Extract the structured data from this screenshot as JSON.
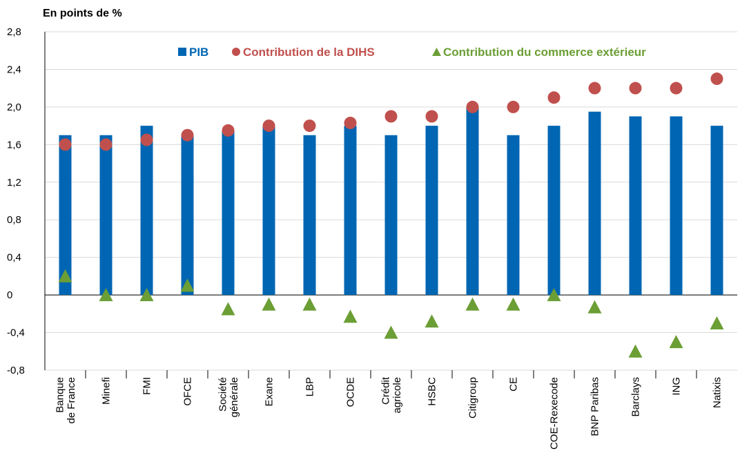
{
  "chart_data": {
    "type": "bar",
    "title": "En points de %",
    "categories": [
      "Banque\nde France",
      "Minefi",
      "FMI",
      "OFCE",
      "Société\ngénérale",
      "Exane",
      "LBP",
      "OCDE",
      "Crédit\nagricole",
      "HSBC",
      "Citigroup",
      "CE",
      "COE-Rexecode",
      "BNP Paribas",
      "Barclays",
      "ING",
      "Natixis"
    ],
    "series": [
      {
        "name": "PIB",
        "color": "#0066b3",
        "mark": "bar",
        "values": [
          1.7,
          1.7,
          1.8,
          1.7,
          1.75,
          1.8,
          1.7,
          1.8,
          1.7,
          1.8,
          2.0,
          1.7,
          1.8,
          1.95,
          1.9,
          1.9,
          1.8
        ]
      },
      {
        "name": "Contribution de la DIHS",
        "color": "#c0504d",
        "mark": "circle",
        "values": [
          1.6,
          1.6,
          1.65,
          1.7,
          1.75,
          1.8,
          1.8,
          1.83,
          1.9,
          1.9,
          2.0,
          2.0,
          2.1,
          2.2,
          2.2,
          2.2,
          2.3
        ]
      },
      {
        "name": "Contribution du commerce extérieur",
        "color": "#6b9e35",
        "mark": "triangle",
        "values": [
          0.2,
          0,
          0,
          0.1,
          -0.15,
          -0.1,
          -0.1,
          -0.23,
          -0.4,
          -0.28,
          -0.1,
          -0.1,
          0,
          -0.13,
          -0.6,
          -0.5,
          -0.3
        ]
      }
    ],
    "ylim": [
      -0.8,
      2.8
    ],
    "yticks": [
      {
        "value": -0.8,
        "label": "-0,8"
      },
      {
        "value": -0.4,
        "label": "-0,4"
      },
      0,
      {
        "value": 0.4,
        "label": "0,4"
      },
      {
        "value": 0.8,
        "label": "0,8"
      },
      {
        "value": 1.2,
        "label": "1,2"
      },
      {
        "value": 1.6,
        "label": "1,6"
      },
      {
        "value": 2.0,
        "label": "2,0"
      },
      {
        "value": 2.4,
        "label": "2,4"
      },
      {
        "value": 2.8,
        "label": "2,8"
      }
    ],
    "grid": true
  }
}
